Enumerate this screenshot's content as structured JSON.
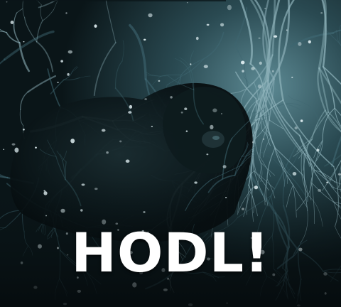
{
  "caption": {
    "text": "HODL!"
  },
  "colors": {
    "background": "#0a1518",
    "foliage_dark": "#0d1e22",
    "foliage_mid": "#3e6670",
    "foliage_light": "#8fb3bb",
    "snow": "#dfeef1",
    "caption": "#ffffff",
    "strike_line": "#0a1518"
  },
  "scene": {
    "description_icon": "snowy-forest-creature-gif-frame"
  }
}
